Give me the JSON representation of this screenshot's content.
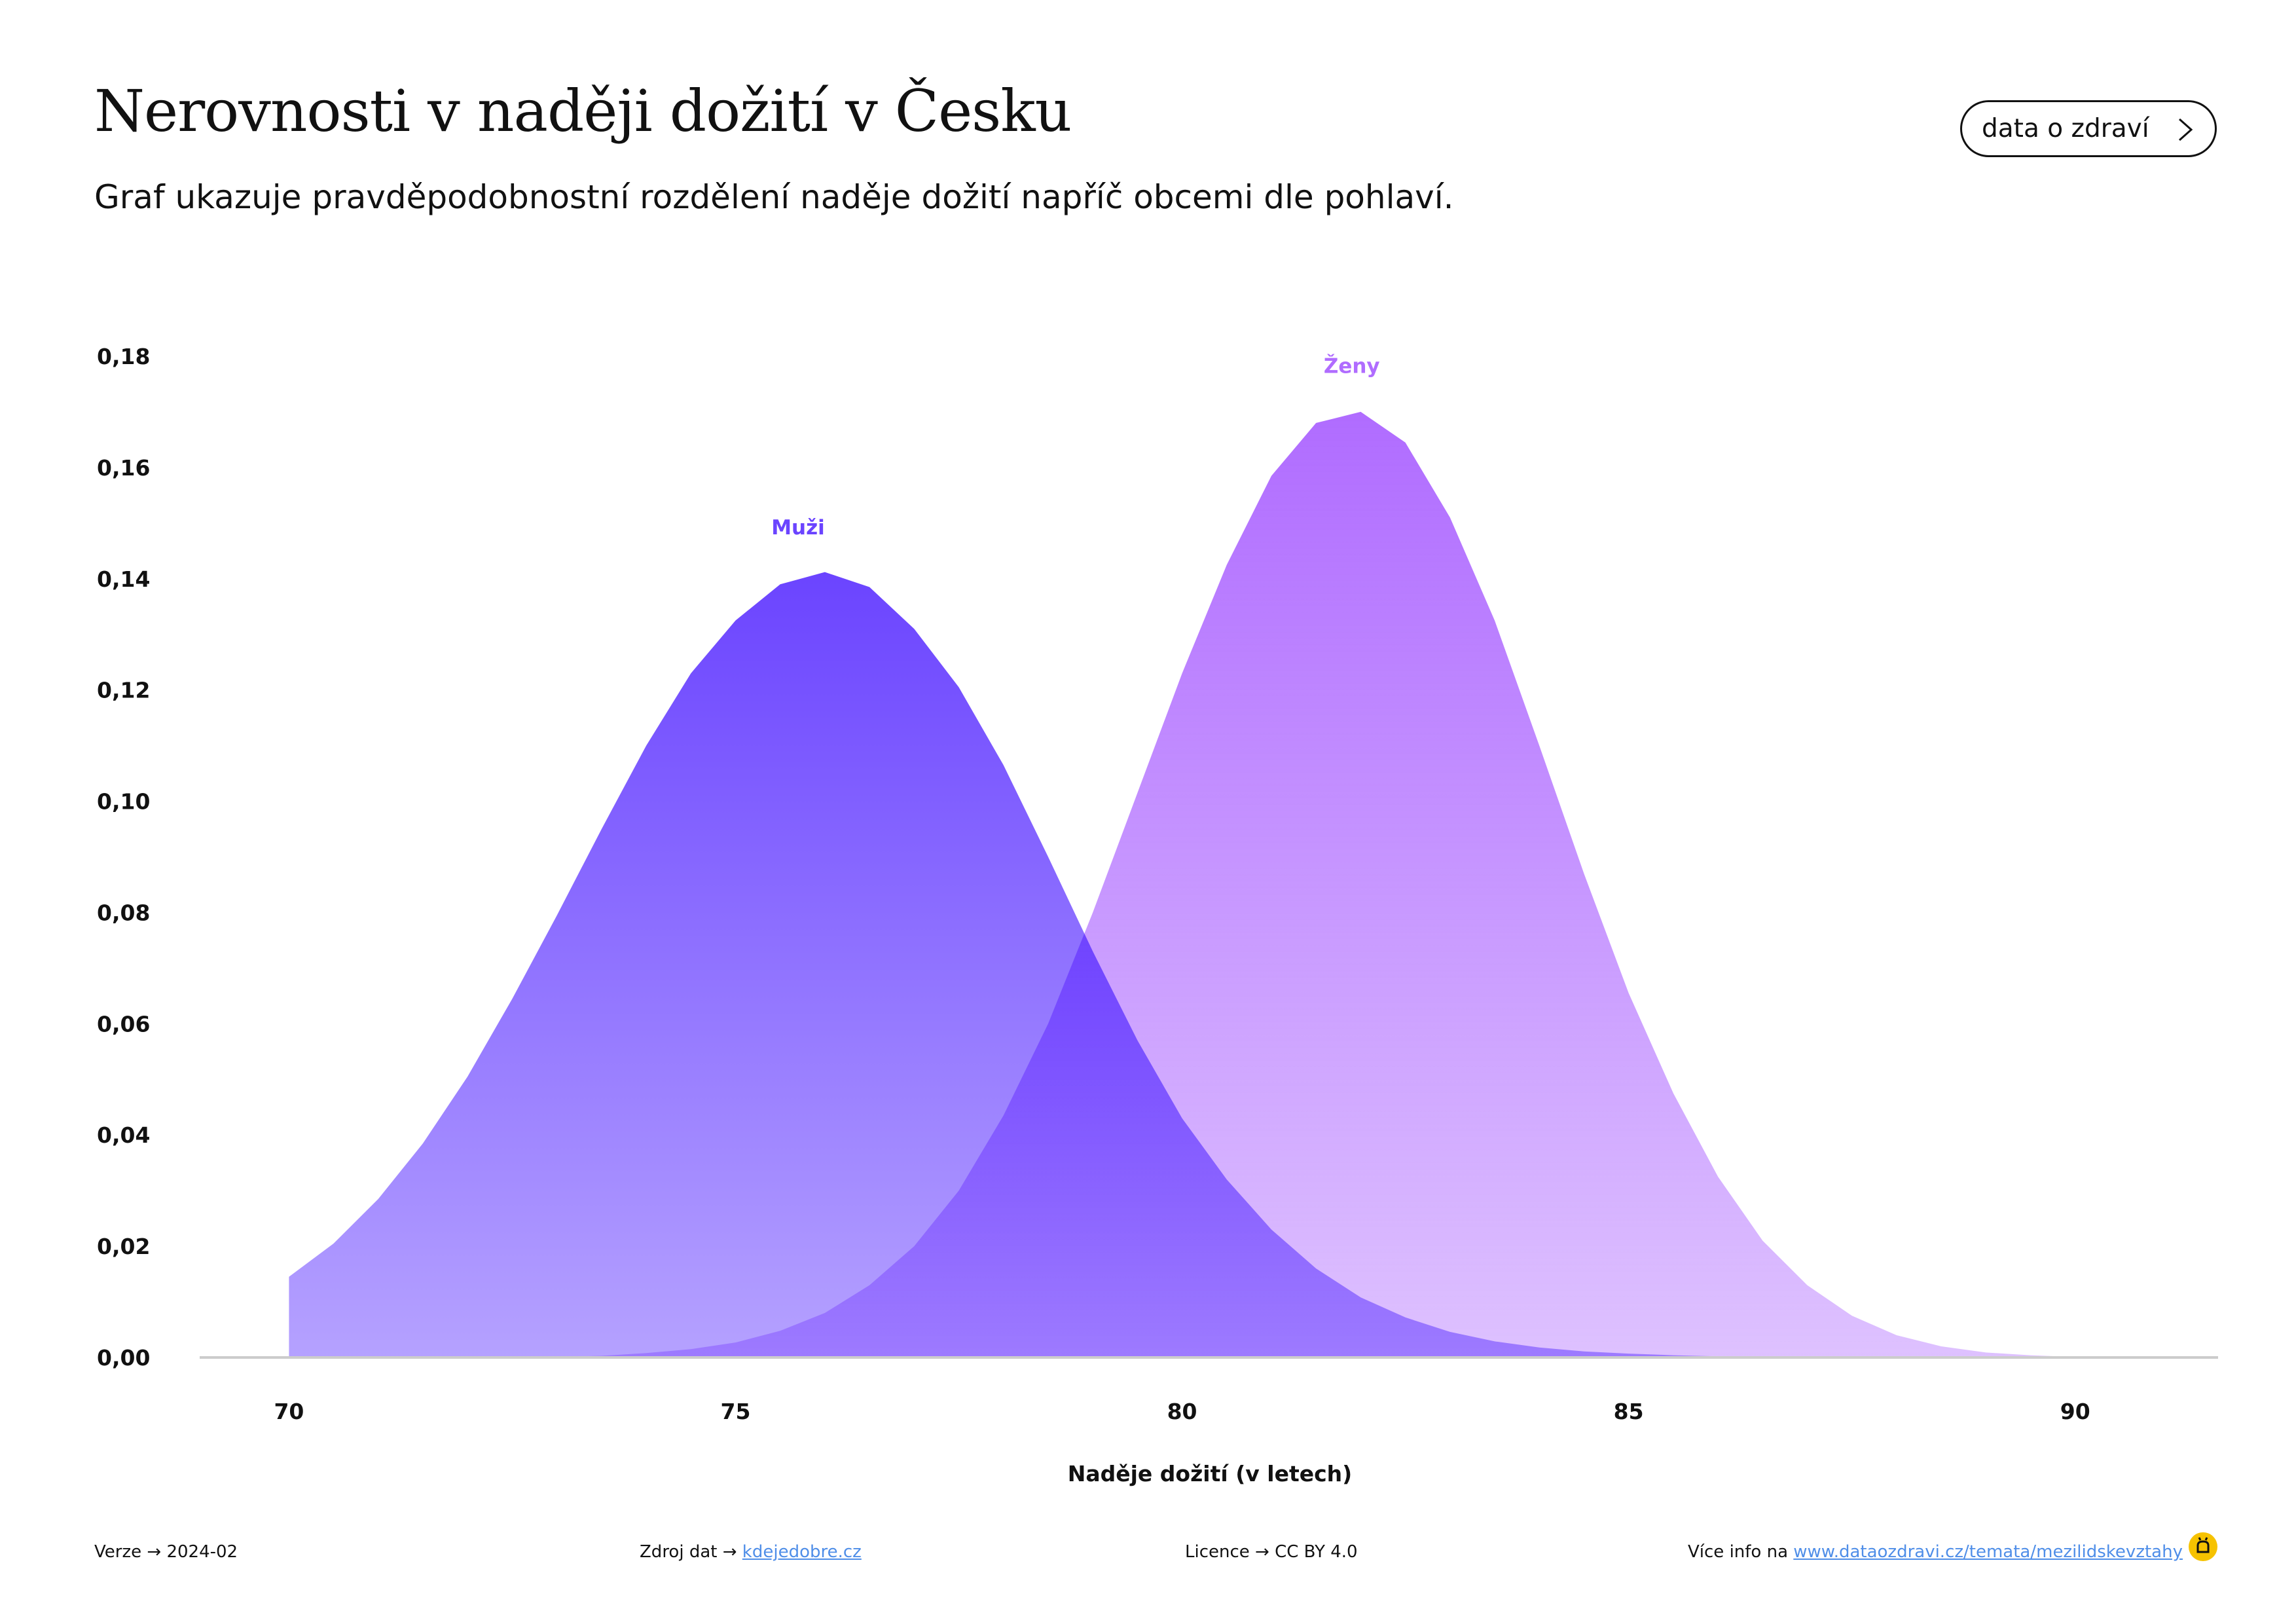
{
  "header": {
    "title": "Nerovnosti v naději dožití v Česku",
    "subtitle": "Graf ukazuje pravděpodobnostní rozdělení naděje dožití napříč obcemi dle pohlaví.",
    "button_label": "data o zdraví"
  },
  "chart_data": {
    "type": "area",
    "xlabel": "Naděje dožití (v letech)",
    "ylabel": "",
    "xlim": [
      69,
      91.6
    ],
    "ylim": [
      0,
      0.18
    ],
    "x_ticks": [
      70,
      75,
      80,
      85,
      90
    ],
    "x_tick_labels": [
      "70",
      "75",
      "80",
      "85",
      "90"
    ],
    "y_ticks": [
      0,
      0.02,
      0.04,
      0.06,
      0.08,
      0.1,
      0.12,
      0.14,
      0.16,
      0.18
    ],
    "y_tick_labels": [
      "0,00",
      "0,02",
      "0,04",
      "0,06",
      "0,08",
      "0,10",
      "0,12",
      "0,14",
      "0,16",
      "0,18"
    ],
    "grid": false,
    "series": [
      {
        "name": "Muži",
        "color": "#6b44ff",
        "label_x": 75.7,
        "label_y": 0.148,
        "x": [
          70.0,
          70.5,
          71.0,
          71.5,
          72.0,
          72.5,
          73.0,
          73.5,
          74.0,
          74.5,
          75.0,
          75.5,
          76.0,
          76.5,
          77.0,
          77.5,
          78.0,
          78.5,
          79.0,
          79.5,
          80.0,
          80.5,
          81.0,
          81.5,
          82.0,
          82.5,
          83.0,
          83.5,
          84.0,
          84.5,
          85.0,
          85.5,
          86.0,
          86.5,
          87.0,
          87.5,
          88.0,
          88.5,
          89.0,
          89.5,
          90.0
        ],
        "y": [
          0.0145,
          0.0205,
          0.0285,
          0.0385,
          0.0505,
          0.0645,
          0.0795,
          0.095,
          0.11,
          0.123,
          0.1325,
          0.139,
          0.1412,
          0.1385,
          0.131,
          0.1205,
          0.1065,
          0.09,
          0.073,
          0.057,
          0.043,
          0.032,
          0.023,
          0.016,
          0.0108,
          0.0072,
          0.0046,
          0.0029,
          0.0018,
          0.0011,
          0.0007,
          0.0004,
          0.0002,
          0.0001,
          0.0001,
          0.0,
          0.0,
          0.0,
          0.0,
          0.0,
          0.0
        ]
      },
      {
        "name": "Ženy",
        "color": "#b06cff",
        "label_x": 81.9,
        "label_y": 0.177,
        "x": [
          70.0,
          70.5,
          71.0,
          71.5,
          72.0,
          72.5,
          73.0,
          73.5,
          74.0,
          74.5,
          75.0,
          75.5,
          76.0,
          76.5,
          77.0,
          77.5,
          78.0,
          78.5,
          79.0,
          79.5,
          80.0,
          80.5,
          81.0,
          81.5,
          82.0,
          82.5,
          83.0,
          83.5,
          84.0,
          84.5,
          85.0,
          85.5,
          86.0,
          86.5,
          87.0,
          87.5,
          88.0,
          88.5,
          89.0,
          89.5,
          90.0
        ],
        "y": [
          0.0,
          0.0,
          0.0,
          0.0,
          0.0,
          0.0,
          0.0001,
          0.0003,
          0.0008,
          0.0015,
          0.0027,
          0.0048,
          0.008,
          0.013,
          0.02,
          0.03,
          0.0435,
          0.06,
          0.08,
          0.1015,
          0.123,
          0.1425,
          0.1585,
          0.168,
          0.17,
          0.1645,
          0.151,
          0.1325,
          0.11,
          0.087,
          0.0655,
          0.0475,
          0.0325,
          0.021,
          0.013,
          0.0075,
          0.004,
          0.002,
          0.0009,
          0.0004,
          0.0001
        ]
      }
    ]
  },
  "footer": {
    "version_label": "Verze",
    "version_value": "2024-02",
    "source_label": "Zdroj dat",
    "source_link": "kdejedobre.cz",
    "license_label": "Licence",
    "license_value": "CC BY 4.0",
    "more_label": "Více info na",
    "more_link": "www.dataozdravi.cz/temata/mezilidskevztahy",
    "arrow": "→"
  }
}
